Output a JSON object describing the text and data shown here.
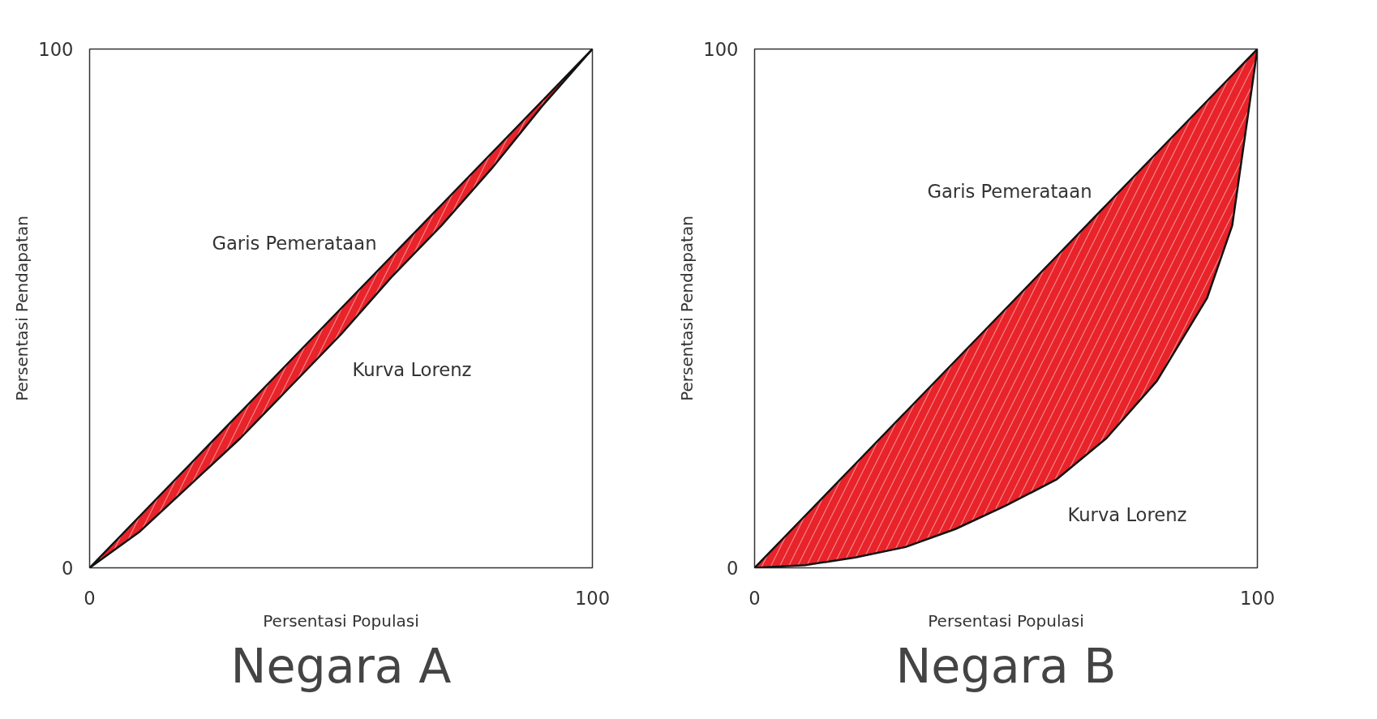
{
  "chart_data": [
    {
      "type": "line",
      "title": "Negara A",
      "xlabel": "Persentasi Populasi",
      "ylabel": "Persentasi Pendapatan",
      "xlim": [
        0,
        100
      ],
      "ylim": [
        0,
        100
      ],
      "xticks": [
        0,
        100
      ],
      "yticks": [
        0,
        100
      ],
      "line_style": "solid",
      "annotations": [
        "Kurva Lorenz"
      ],
      "series": [
        {
          "name": "Garis Pemerataan",
          "x": [
            0,
            10,
            20,
            30,
            40,
            50,
            60,
            70,
            80,
            90,
            100
          ],
          "color": "#111111",
          "values": [
            0,
            10,
            20,
            30,
            40,
            50,
            60,
            70,
            80,
            90,
            100
          ],
          "lower": [
            0,
            7,
            16,
            25,
            35,
            45,
            56,
            66,
            77,
            89,
            100
          ],
          "upper": [
            0,
            10,
            20,
            30,
            40,
            50,
            60,
            70,
            80,
            90,
            100
          ]
        }
      ]
    },
    {
      "type": "line",
      "title": "Negara B",
      "xlabel": "Persentasi Populasi",
      "ylabel": "Persentasi Pendapatan",
      "xlim": [
        0,
        100
      ],
      "ylim": [
        0,
        100
      ],
      "xticks": [
        0,
        100
      ],
      "yticks": [
        0,
        100
      ],
      "line_style": "solid",
      "annotations": [
        "Kurva Lorenz"
      ],
      "series": [
        {
          "name": "Garis Pemerataan",
          "x": [
            0,
            10,
            20,
            30,
            40,
            50,
            60,
            70,
            80,
            90,
            95,
            100
          ],
          "color": "#111111",
          "values": [
            0,
            10,
            20,
            30,
            40,
            50,
            60,
            70,
            80,
            90,
            95,
            100
          ],
          "lower": [
            0,
            0.5,
            2,
            4,
            7.5,
            12,
            17,
            25,
            36,
            52,
            66,
            100
          ],
          "upper": [
            0,
            10,
            20,
            30,
            40,
            50,
            60,
            70,
            80,
            90,
            95,
            100
          ]
        }
      ]
    }
  ]
}
